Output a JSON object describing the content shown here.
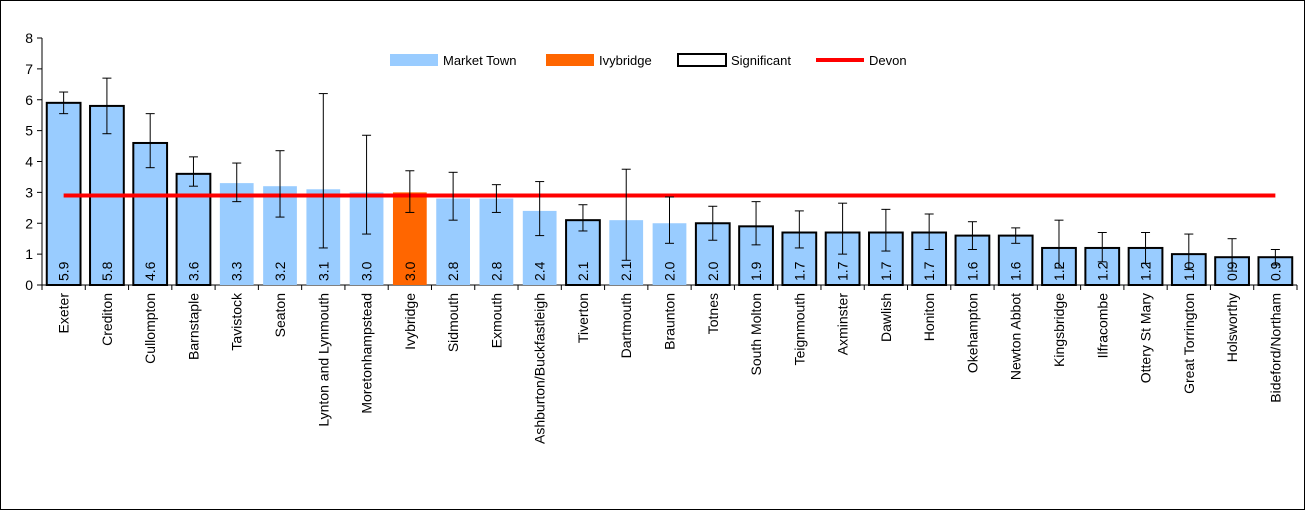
{
  "chart_data": {
    "type": "bar",
    "title": "",
    "xlabel": "",
    "ylabel": "",
    "ylim": [
      0,
      8
    ],
    "yticks": [
      "0",
      "1",
      "2",
      "3",
      "4",
      "5",
      "6",
      "7",
      "8"
    ],
    "grid": false,
    "legend_position": "top-center",
    "legend": {
      "market_town": "Market Town",
      "ivybridge": "Ivybridge",
      "significant": "Significant",
      "devon": "Devon"
    },
    "colors": {
      "market_town": "#99ccff",
      "ivybridge": "#ff6600",
      "significant_border": "#000000",
      "devon_line": "#ff0000",
      "error_bar": "#000000"
    },
    "devon_value": 2.9,
    "categories": [
      "Exeter",
      "Crediton",
      "Cullompton",
      "Barnstaple",
      "Tavistock",
      "Seaton",
      "Lynton and Lynmouth",
      "Moretonhampstead",
      "Ivybridge",
      "Sidmouth",
      "Exmouth",
      "Ashburton/Buckfastleigh",
      "Tiverton",
      "Dartmouth",
      "Braunton",
      "Totnes",
      "South Molton",
      "Teignmouth",
      "Axminster",
      "Dawlish",
      "Honiton",
      "Okehampton",
      "Newton Abbot",
      "Kingsbridge",
      "Ilfracombe",
      "Ottery St Mary",
      "Great Torrington",
      "Holsworthy",
      "Bideford/Northam"
    ],
    "values": [
      5.9,
      5.8,
      4.6,
      3.6,
      3.3,
      3.2,
      3.1,
      3.0,
      3.0,
      2.8,
      2.8,
      2.4,
      2.1,
      2.1,
      2.0,
      2.0,
      1.9,
      1.7,
      1.7,
      1.7,
      1.7,
      1.6,
      1.6,
      1.2,
      1.2,
      1.2,
      1.0,
      0.9,
      0.9
    ],
    "value_labels": [
      "5.9",
      "5.8",
      "4.6",
      "3.6",
      "3.3",
      "3.2",
      "3.1",
      "3.0",
      "3.0",
      "2.8",
      "2.8",
      "2.4",
      "2.1",
      "2.1",
      "2.0",
      "2.0",
      "1.9",
      "1.7",
      "1.7",
      "1.7",
      "1.7",
      "1.6",
      "1.6",
      "1.2",
      "1.2",
      "1.2",
      "1.0",
      "0.9",
      "0.9"
    ],
    "error_low": [
      5.55,
      4.9,
      3.8,
      3.2,
      2.7,
      2.2,
      1.2,
      1.65,
      2.35,
      2.1,
      2.35,
      1.6,
      1.75,
      0.8,
      1.35,
      1.45,
      1.3,
      1.2,
      1.0,
      1.1,
      1.15,
      1.15,
      1.35,
      0.55,
      0.75,
      0.7,
      0.5,
      0.45,
      0.65
    ],
    "error_high": [
      6.25,
      6.7,
      5.55,
      4.15,
      3.95,
      4.35,
      6.2,
      4.85,
      3.7,
      3.65,
      3.25,
      3.35,
      2.6,
      3.75,
      2.85,
      2.55,
      2.7,
      2.4,
      2.65,
      2.45,
      2.3,
      2.05,
      1.85,
      2.1,
      1.7,
      1.7,
      1.65,
      1.5,
      1.15
    ],
    "series_type": [
      "significant",
      "significant",
      "significant",
      "significant",
      "market_town",
      "market_town",
      "market_town",
      "market_town",
      "ivybridge",
      "market_town",
      "market_town",
      "market_town",
      "significant",
      "market_town",
      "market_town",
      "significant",
      "significant",
      "significant",
      "significant",
      "significant",
      "significant",
      "significant",
      "significant",
      "significant",
      "significant",
      "significant",
      "significant",
      "significant",
      "significant"
    ]
  }
}
